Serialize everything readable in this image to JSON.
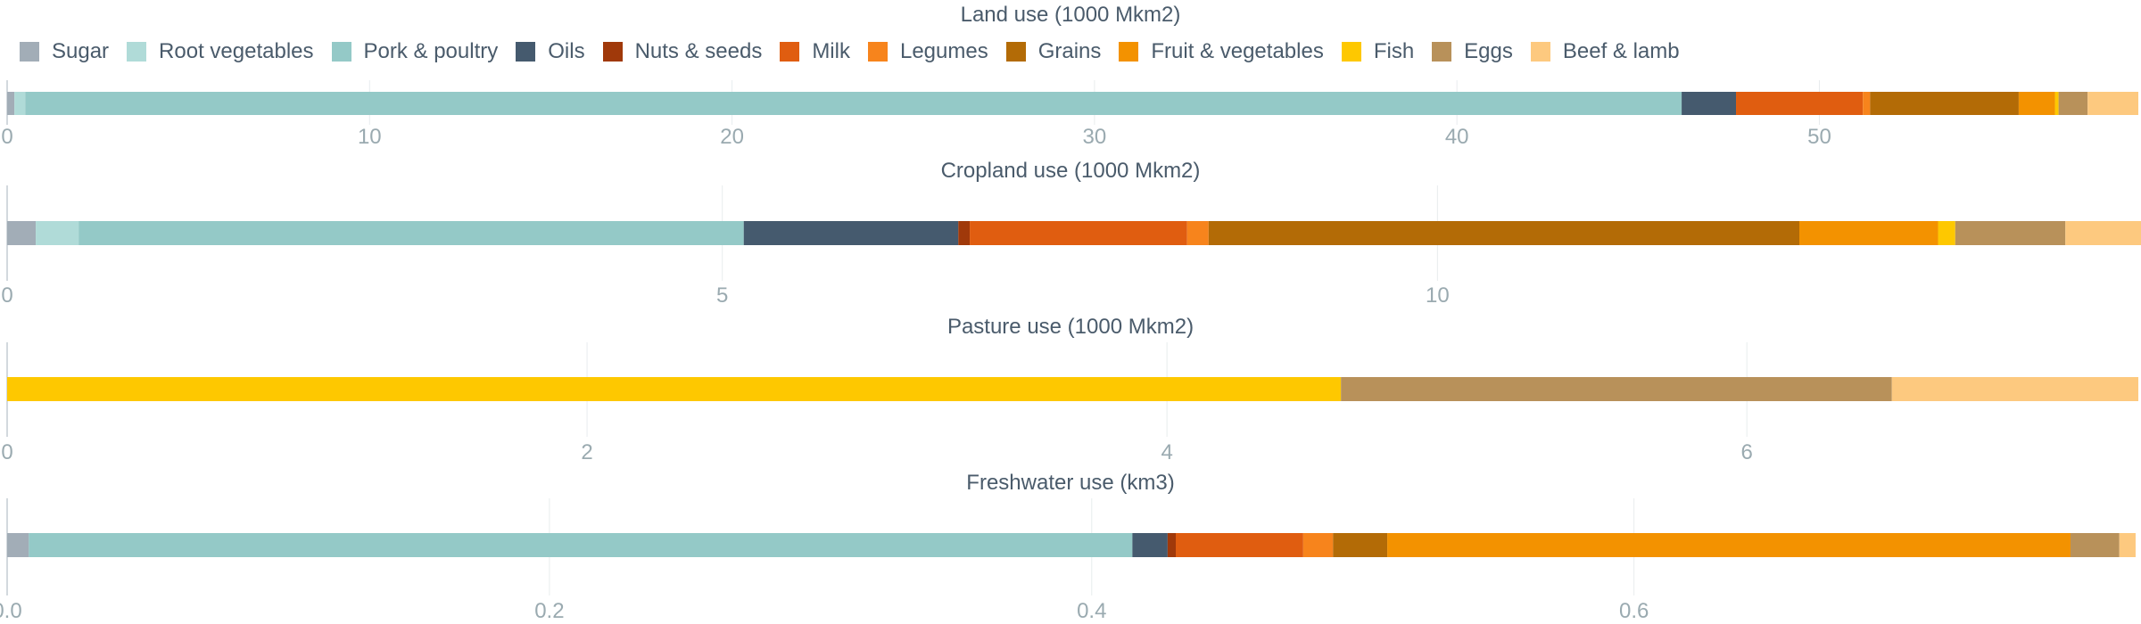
{
  "colors": {
    "Sugar": "#a2adb7",
    "Root vegetables": "#b0dbd8",
    "Pork & poultry": "#94c9c7",
    "Oils": "#455a6e",
    "Nuts & seeds": "#a0390a",
    "Milk": "#e05d10",
    "Legumes": "#f7841c",
    "Grains": "#b36b06",
    "Fruit & vegetables": "#f39200",
    "Fish": "#fec800",
    "Eggs": "#b8915a",
    "Beef & lamb": "#fdc97f"
  },
  "legend": [
    "Sugar",
    "Root vegetables",
    "Pork & poultry",
    "Oils",
    "Nuts & seeds",
    "Milk",
    "Legumes",
    "Grains",
    "Fruit & vegetables",
    "Fish",
    "Eggs",
    "Beef & lamb"
  ],
  "chart_data": [
    {
      "type": "bar",
      "orientation": "horizontal-stacked",
      "title": "Land use (1000 Mkm2)",
      "xlim": [
        0,
        58.8
      ],
      "ticks": [
        0,
        10,
        20,
        30,
        40,
        50
      ],
      "tick_labels": [
        "0",
        "10",
        "20",
        "30",
        "40",
        "50"
      ],
      "grid": true,
      "series": [
        {
          "name": "Sugar",
          "value": 0.2
        },
        {
          "name": "Root vegetables",
          "value": 0.3
        },
        {
          "name": "Pork & poultry",
          "value": 45.7
        },
        {
          "name": "Oils",
          "value": 1.5
        },
        {
          "name": "Nuts & seeds",
          "value": 0.0
        },
        {
          "name": "Milk",
          "value": 3.5
        },
        {
          "name": "Legumes",
          "value": 0.2
        },
        {
          "name": "Grains",
          "value": 4.1
        },
        {
          "name": "Fruit & vegetables",
          "value": 1.0
        },
        {
          "name": "Fish",
          "value": 0.1
        },
        {
          "name": "Eggs",
          "value": 0.8
        },
        {
          "name": "Beef & lamb",
          "value": 1.4
        }
      ]
    },
    {
      "type": "bar",
      "orientation": "horizontal-stacked",
      "title": "Cropland use (1000 Mkm2)",
      "xlim": [
        0,
        14.9
      ],
      "ticks": [
        0,
        5,
        10
      ],
      "tick_labels": [
        "0",
        "5",
        "10"
      ],
      "grid": true,
      "series": [
        {
          "name": "Sugar",
          "value": 0.2
        },
        {
          "name": "Root vegetables",
          "value": 0.3
        },
        {
          "name": "Pork & poultry",
          "value": 4.65
        },
        {
          "name": "Oils",
          "value": 1.5
        },
        {
          "name": "Nuts & seeds",
          "value": 0.08
        },
        {
          "name": "Milk",
          "value": 1.52
        },
        {
          "name": "Legumes",
          "value": 0.15
        },
        {
          "name": "Grains",
          "value": 4.13
        },
        {
          "name": "Fruit & vegetables",
          "value": 0.97
        },
        {
          "name": "Fish",
          "value": 0.12
        },
        {
          "name": "Eggs",
          "value": 0.77
        },
        {
          "name": "Beef & lamb",
          "value": 0.53
        }
      ]
    },
    {
      "type": "bar",
      "orientation": "horizontal-stacked",
      "title": "Pasture use (1000 Mkm2)",
      "xlim": [
        0,
        7.35
      ],
      "ticks": [
        0,
        2,
        4,
        6
      ],
      "tick_labels": [
        "0",
        "2",
        "4",
        "6"
      ],
      "grid": true,
      "series": [
        {
          "name": "Fish",
          "value": 4.6
        },
        {
          "name": "Eggs",
          "value": 1.9
        },
        {
          "name": "Beef & lamb",
          "value": 0.85
        }
      ]
    },
    {
      "type": "bar",
      "orientation": "horizontal-stacked",
      "title": "Freshwater use (km3)",
      "xlim": [
        0,
        0.786
      ],
      "ticks": [
        0,
        0.2,
        0.4,
        0.6
      ],
      "tick_labels": [
        "0.0",
        "0.2",
        "0.4",
        "0.6"
      ],
      "grid": true,
      "series": [
        {
          "name": "Sugar",
          "value": 0.008
        },
        {
          "name": "Pork & poultry",
          "value": 0.407
        },
        {
          "name": "Oils",
          "value": 0.013
        },
        {
          "name": "Nuts & seeds",
          "value": 0.003
        },
        {
          "name": "Milk",
          "value": 0.047
        },
        {
          "name": "Legumes",
          "value": 0.011
        },
        {
          "name": "Grains",
          "value": 0.02
        },
        {
          "name": "Fruit & vegetables",
          "value": 0.252
        },
        {
          "name": "Eggs",
          "value": 0.018
        },
        {
          "name": "Beef & lamb",
          "value": 0.006
        }
      ]
    }
  ]
}
